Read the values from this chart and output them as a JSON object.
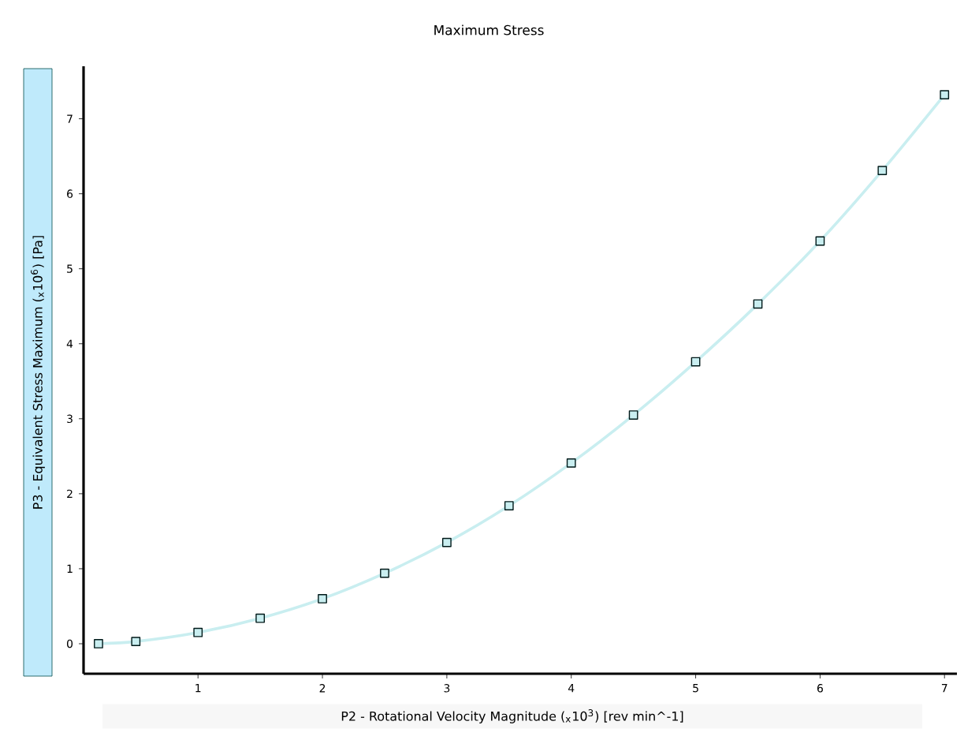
{
  "chart_data": {
    "type": "line",
    "title": "Maximum Stress",
    "xlabel": "P2 - Rotational Velocity Magnitude  ($_{x}$10$^{3}$)  [rev min^-1]",
    "ylabel": "P3 - Equivalent Stress Maximum  ($_{x}$10$^{6}$)  [Pa]",
    "x": [
      0.2,
      0.5,
      1,
      1.5,
      2,
      2.5,
      3,
      3.5,
      4,
      4.5,
      5,
      5.5,
      6,
      6.5,
      7
    ],
    "series": [
      {
        "color": "#c9eef0",
        "values": [
          0,
          0.03,
          0.15,
          0.34,
          0.6,
          0.94,
          1.35,
          1.84,
          2.41,
          3.05,
          3.76,
          4.53,
          5.37,
          6.31,
          7.32
        ]
      }
    ],
    "xlim": [
      0.08,
      7.1
    ],
    "ylim": [
      -0.4,
      7.7
    ],
    "xticks": [
      1,
      2,
      3,
      4,
      5,
      6,
      7
    ],
    "yticks": [
      0,
      1,
      2,
      3,
      4,
      5,
      6,
      7
    ],
    "marker": "square",
    "line_style": "solid"
  }
}
